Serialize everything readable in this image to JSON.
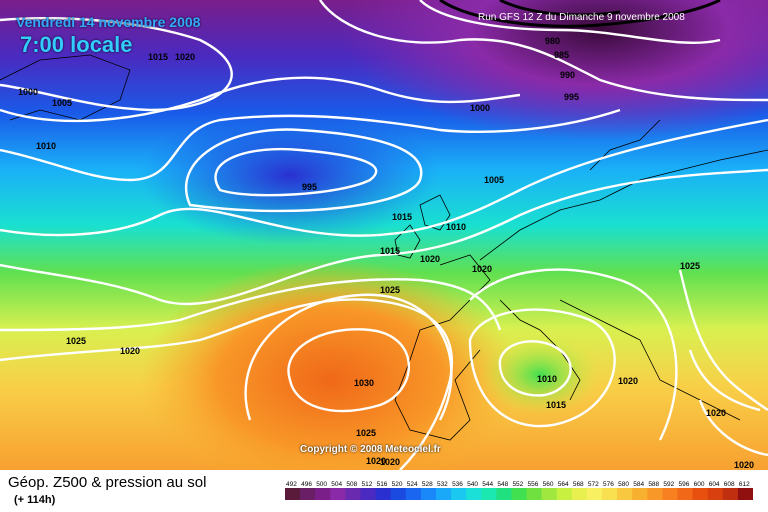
{
  "header": {
    "date": "Vendredi 14 novembre 2008",
    "local_time": "7:00 locale",
    "run": "Run GFS 12 Z du Dimanche 9 novembre 2008"
  },
  "copyright": "Copyright © 2008 Meteociel.fr",
  "legend": {
    "caption": "Géop. Z500 & pression au sol",
    "forecast": "(+ 114h)",
    "values": [
      "492",
      "496",
      "500",
      "504",
      "508",
      "512",
      "516",
      "520",
      "524",
      "528",
      "532",
      "536",
      "540",
      "544",
      "548",
      "552",
      "556",
      "560",
      "564",
      "568",
      "572",
      "576",
      "580",
      "584",
      "588",
      "592",
      "596",
      "600",
      "604",
      "608",
      "612"
    ],
    "colors": [
      "#5a1a3a",
      "#6a1e66",
      "#7a1e8a",
      "#8a2aa8",
      "#6a2ab0",
      "#4a2ac0",
      "#2a30d0",
      "#1a4ae0",
      "#1a66f0",
      "#1a88f8",
      "#1aa8f8",
      "#1ac8f0",
      "#1ae0d8",
      "#1ae8b0",
      "#20e080",
      "#40e050",
      "#70e040",
      "#a0e840",
      "#c8f040",
      "#e8f050",
      "#f8f060",
      "#f8e050",
      "#f8c840",
      "#f8b030",
      "#f89828",
      "#f88020",
      "#f06818",
      "#e85010",
      "#d84010",
      "#c03010",
      "#901010"
    ]
  },
  "isobar_labels": [
    "1000",
    "1005",
    "1010",
    "1015",
    "1020",
    "1015",
    "1020",
    "1025",
    "1020",
    "980",
    "985",
    "990",
    "995",
    "1000",
    "995",
    "1005",
    "1010",
    "1015",
    "1020",
    "1025",
    "1030",
    "1025",
    "1020",
    "1020",
    "1010",
    "1015",
    "1020",
    "1025",
    "1020",
    "1020"
  ]
}
